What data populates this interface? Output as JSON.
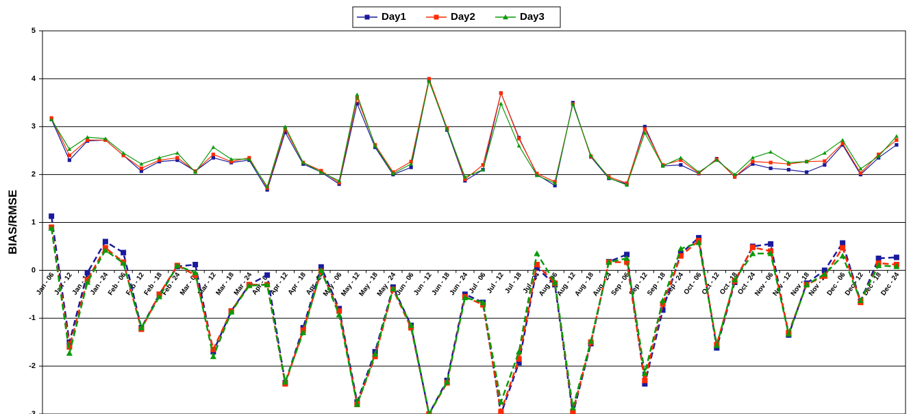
{
  "chart_data": {
    "type": "line",
    "y_label": "BIAS/RMSE",
    "categories": [
      "Jan - 06",
      "Jan - 12",
      "Jan - 18",
      "Jan - 24",
      "Feb - 06",
      "Feb - 12",
      "Feb - 18",
      "Feb - 24",
      "Mar - 06",
      "Mar - 12",
      "Mar - 18",
      "Mar - 24",
      "Apr - 06",
      "Apr - 12",
      "Apr - 18",
      "Apr - 24",
      "May - 06",
      "May - 12",
      "May - 18",
      "May - 24",
      "Jun - 06",
      "Jun - 12",
      "Jun - 18",
      "Jun - 24",
      "Jul - 06",
      "Jul - 12",
      "Jul - 18",
      "Jul - 24",
      "Aug - 06",
      "Aug - 12",
      "Aug - 18",
      "Aug - 24",
      "Sep - 06",
      "Sep - 12",
      "Sep - 18",
      "Sep - 24",
      "Oct - 06",
      "Oct - 12",
      "Oct - 18",
      "Oct - 24",
      "Nov - 06",
      "Nov - 12",
      "Nov - 18",
      "Nov - 24",
      "Dec - 06",
      "Dec - 12",
      "Dec - 18",
      "Dec - 24"
    ],
    "series": [
      {
        "name": "Day1",
        "color": "#1a1a9c",
        "marker": "square",
        "dashed": false,
        "values": [
          3.15,
          2.3,
          2.7,
          2.72,
          2.4,
          2.07,
          2.27,
          2.3,
          2.07,
          2.35,
          2.25,
          2.3,
          1.68,
          2.88,
          2.22,
          2.05,
          1.8,
          3.48,
          2.57,
          2.0,
          2.15,
          3.97,
          2.93,
          1.87,
          2.1,
          3.7,
          2.77,
          2.0,
          1.77,
          3.5,
          2.37,
          1.92,
          1.8,
          3.0,
          2.18,
          2.2,
          2.02,
          2.33,
          1.95,
          2.22,
          2.13,
          2.1,
          2.05,
          2.2,
          2.62,
          2.0,
          2.35,
          2.62
        ]
      },
      {
        "name": "Day2",
        "color": "#ff2a00",
        "marker": "square",
        "dashed": false,
        "values": [
          3.18,
          2.4,
          2.72,
          2.72,
          2.4,
          2.13,
          2.3,
          2.35,
          2.07,
          2.42,
          2.27,
          2.35,
          1.72,
          2.95,
          2.25,
          2.08,
          1.83,
          3.6,
          2.62,
          2.05,
          2.27,
          4.0,
          2.97,
          1.9,
          2.2,
          3.7,
          2.75,
          2.02,
          1.85,
          3.47,
          2.38,
          1.95,
          1.82,
          2.95,
          2.2,
          2.3,
          2.03,
          2.32,
          1.95,
          2.27,
          2.25,
          2.22,
          2.27,
          2.28,
          2.65,
          2.03,
          2.42,
          2.72
        ]
      },
      {
        "name": "Day3",
        "color": "#0a9a0a",
        "marker": "triangle",
        "dashed": false,
        "values": [
          3.15,
          2.53,
          2.78,
          2.75,
          2.45,
          2.22,
          2.35,
          2.45,
          2.05,
          2.57,
          2.32,
          2.32,
          1.75,
          3.0,
          2.25,
          2.05,
          1.87,
          3.67,
          2.6,
          2.02,
          2.22,
          3.95,
          2.95,
          1.95,
          2.1,
          3.48,
          2.6,
          1.98,
          1.82,
          3.47,
          2.4,
          1.93,
          1.78,
          2.87,
          2.18,
          2.35,
          2.05,
          2.3,
          2.0,
          2.35,
          2.47,
          2.25,
          2.27,
          2.45,
          2.72,
          2.12,
          2.38,
          2.8
        ]
      },
      {
        "name": "Day1",
        "color": "#1a1a9c",
        "marker": "square",
        "dashed": true,
        "values": [
          1.13,
          -1.5,
          -0.05,
          0.6,
          0.37,
          -1.2,
          -0.5,
          0.08,
          0.12,
          -1.7,
          -0.85,
          -0.3,
          -0.1,
          -2.35,
          -1.2,
          0.07,
          -0.8,
          -2.75,
          -1.7,
          -0.35,
          -1.15,
          -3.0,
          -2.3,
          -0.5,
          -0.67,
          -3.0,
          -1.93,
          0.05,
          -0.3,
          -3.0,
          -1.53,
          0.18,
          0.33,
          -2.37,
          -0.83,
          0.35,
          0.68,
          -1.62,
          -0.25,
          0.5,
          0.55,
          -1.35,
          -0.27,
          0.0,
          0.57,
          -0.65,
          0.25,
          0.27
        ]
      },
      {
        "name": "Day2",
        "color": "#ff2a00",
        "marker": "square",
        "dashed": true,
        "values": [
          0.9,
          -1.6,
          -0.2,
          0.47,
          0.17,
          -1.23,
          -0.5,
          0.1,
          -0.1,
          -1.65,
          -0.85,
          -0.3,
          -0.3,
          -2.37,
          -1.25,
          -0.02,
          -0.85,
          -2.8,
          -1.8,
          -0.4,
          -1.2,
          -3.0,
          -2.35,
          -0.55,
          -0.72,
          -2.95,
          -1.85,
          0.12,
          -0.27,
          -2.95,
          -1.5,
          0.17,
          0.17,
          -2.3,
          -0.7,
          0.3,
          0.62,
          -1.55,
          -0.22,
          0.48,
          0.4,
          -1.3,
          -0.3,
          -0.12,
          0.47,
          -0.67,
          0.15,
          0.12
        ]
      },
      {
        "name": "Day3",
        "color": "#0a9a0a",
        "marker": "triangle",
        "dashed": true,
        "values": [
          0.88,
          -1.73,
          -0.25,
          0.42,
          0.15,
          -1.2,
          -0.55,
          0.1,
          -0.05,
          -1.8,
          -0.87,
          -0.32,
          -0.3,
          -2.33,
          -1.3,
          0.0,
          -0.93,
          -2.8,
          -1.75,
          -0.38,
          -1.15,
          -3.0,
          -2.33,
          -0.57,
          -0.67,
          -2.75,
          -1.7,
          0.35,
          -0.25,
          -2.87,
          -1.48,
          0.17,
          0.25,
          -2.15,
          -0.63,
          0.45,
          0.58,
          -1.57,
          -0.2,
          0.35,
          0.35,
          -1.33,
          -0.3,
          -0.08,
          0.3,
          -0.63,
          0.1,
          0.08
        ]
      }
    ],
    "legend_series": [
      0,
      1,
      2
    ],
    "ylim": [
      -3,
      5
    ],
    "yticks": [
      -3,
      -2,
      -1,
      0,
      1,
      2,
      3,
      4,
      5
    ],
    "grid": true
  }
}
